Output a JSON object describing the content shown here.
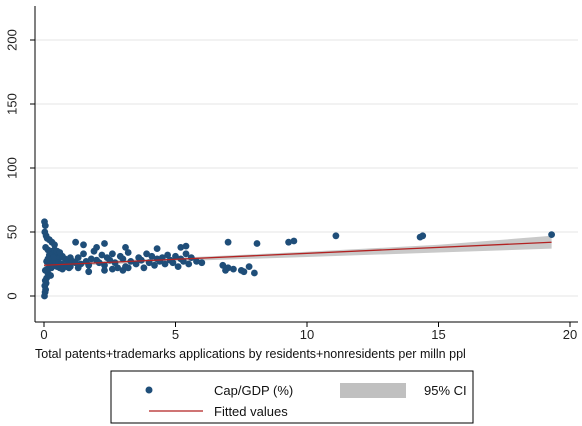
{
  "chart_data": {
    "type": "scatter",
    "title": "",
    "xlabel": "Total patents+trademarks applications by residents+nonresidents per milln ppl",
    "ylabel": "",
    "xlim": [
      -0.3,
      20.3
    ],
    "ylim": [
      -20,
      222
    ],
    "x_ticks": [
      0,
      5,
      10,
      15,
      20
    ],
    "y_ticks": [
      0,
      50,
      100,
      150,
      200
    ],
    "x_tick_labels": [
      "0",
      "5",
      "10",
      "15",
      "20"
    ],
    "y_tick_labels": [
      "0",
      "50",
      "100",
      "150",
      "200"
    ],
    "grid": "horizontal",
    "legend_position": "bottom",
    "series": [
      {
        "name": "Cap/GDP (%)",
        "kind": "scatter",
        "color": "#1f4e79",
        "points": [
          [
            0.02,
            58
          ],
          [
            0.05,
            55
          ],
          [
            0.03,
            50
          ],
          [
            0.08,
            47
          ],
          [
            0.12,
            45
          ],
          [
            0.2,
            44
          ],
          [
            0.3,
            42
          ],
          [
            0.4,
            40
          ],
          [
            0.06,
            38
          ],
          [
            0.15,
            36
          ],
          [
            0.25,
            35
          ],
          [
            0.35,
            33
          ],
          [
            0.5,
            32
          ],
          [
            0.6,
            30
          ],
          [
            0.7,
            31
          ],
          [
            0.8,
            29
          ],
          [
            0.9,
            28
          ],
          [
            1.0,
            30
          ],
          [
            0.1,
            27
          ],
          [
            0.2,
            26
          ],
          [
            0.3,
            25
          ],
          [
            0.4,
            24
          ],
          [
            0.5,
            23
          ],
          [
            0.6,
            22
          ],
          [
            0.7,
            21
          ],
          [
            0.05,
            20
          ],
          [
            0.15,
            18
          ],
          [
            0.25,
            16
          ],
          [
            0.1,
            14
          ],
          [
            0.05,
            12
          ],
          [
            0.08,
            10
          ],
          [
            0.03,
            8
          ],
          [
            0.06,
            5
          ],
          [
            0.04,
            3
          ],
          [
            0.02,
            0
          ],
          [
            0.3,
            28
          ],
          [
            0.45,
            27
          ],
          [
            0.55,
            26
          ],
          [
            0.65,
            25
          ],
          [
            0.75,
            24
          ],
          [
            0.85,
            23
          ],
          [
            0.95,
            22
          ],
          [
            1.1,
            27
          ],
          [
            1.2,
            26
          ],
          [
            1.3,
            30
          ],
          [
            1.4,
            25
          ],
          [
            1.5,
            33
          ],
          [
            1.6,
            27
          ],
          [
            1.7,
            24
          ],
          [
            1.8,
            29
          ],
          [
            1.9,
            35
          ],
          [
            2.0,
            28
          ],
          [
            2.1,
            26
          ],
          [
            2.2,
            32
          ],
          [
            2.3,
            24
          ],
          [
            2.4,
            30
          ],
          [
            2.5,
            28
          ],
          [
            2.6,
            33
          ],
          [
            2.7,
            26
          ],
          [
            2.8,
            22
          ],
          [
            2.9,
            31
          ],
          [
            3.0,
            29
          ],
          [
            3.1,
            23
          ],
          [
            3.2,
            34
          ],
          [
            3.3,
            27
          ],
          [
            3.5,
            25
          ],
          [
            3.6,
            30
          ],
          [
            3.7,
            28
          ],
          [
            3.8,
            22
          ],
          [
            3.9,
            33
          ],
          [
            4.0,
            26
          ],
          [
            4.1,
            31
          ],
          [
            4.2,
            24
          ],
          [
            4.3,
            29
          ],
          [
            4.4,
            27
          ],
          [
            4.5,
            30
          ],
          [
            4.6,
            25
          ],
          [
            4.7,
            32
          ],
          [
            4.8,
            28
          ],
          [
            4.9,
            26
          ],
          [
            5.0,
            31
          ],
          [
            5.1,
            23
          ],
          [
            5.2,
            29
          ],
          [
            5.3,
            27
          ],
          [
            5.4,
            33
          ],
          [
            5.5,
            25
          ],
          [
            5.6,
            30
          ],
          [
            5.8,
            27
          ],
          [
            6.0,
            26
          ],
          [
            1.2,
            42
          ],
          [
            1.5,
            40
          ],
          [
            2.0,
            38
          ],
          [
            2.3,
            41
          ],
          [
            3.1,
            38
          ],
          [
            4.3,
            37
          ],
          [
            5.2,
            38
          ],
          [
            5.4,
            39
          ],
          [
            7.0,
            42
          ],
          [
            8.1,
            41
          ],
          [
            9.3,
            42
          ],
          [
            9.5,
            43
          ],
          [
            11.1,
            47
          ],
          [
            14.3,
            46
          ],
          [
            14.4,
            47
          ],
          [
            19.3,
            48
          ],
          [
            7.0,
            22
          ],
          [
            7.5,
            20
          ],
          [
            7.6,
            19
          ],
          [
            7.8,
            23
          ],
          [
            8.0,
            18
          ],
          [
            6.8,
            24
          ],
          [
            6.9,
            20
          ],
          [
            7.2,
            21
          ],
          [
            1.7,
            19
          ],
          [
            2.3,
            20
          ],
          [
            2.6,
            21
          ],
          [
            3.0,
            20
          ],
          [
            3.2,
            22
          ],
          [
            0.9,
            24
          ],
          [
            1.0,
            23
          ],
          [
            1.3,
            22
          ],
          [
            0.4,
            36
          ],
          [
            0.5,
            35
          ],
          [
            0.6,
            34
          ],
          [
            0.2,
            32
          ],
          [
            0.35,
            30
          ],
          [
            0.15,
            29
          ],
          [
            0.22,
            24
          ],
          [
            0.28,
            22
          ],
          [
            0.12,
            21
          ]
        ]
      },
      {
        "name": "Fitted values",
        "kind": "line",
        "color": "#b22222",
        "x": [
          0,
          19.3
        ],
        "y": [
          24,
          42
        ]
      },
      {
        "name": "95% CI",
        "kind": "band",
        "color": "#c0c0c0",
        "x": [
          0,
          5,
          10,
          15,
          19.3
        ],
        "lower": [
          22.5,
          27.2,
          30.5,
          34.0,
          37.0
        ],
        "upper": [
          25.5,
          29.8,
          34.5,
          40.0,
          47.0
        ]
      }
    ]
  },
  "legend": {
    "items": [
      {
        "label": "Cap/GDP (%)",
        "kind": "marker"
      },
      {
        "label": "95% CI",
        "kind": "band"
      },
      {
        "label": "Fitted values",
        "kind": "line"
      }
    ]
  }
}
